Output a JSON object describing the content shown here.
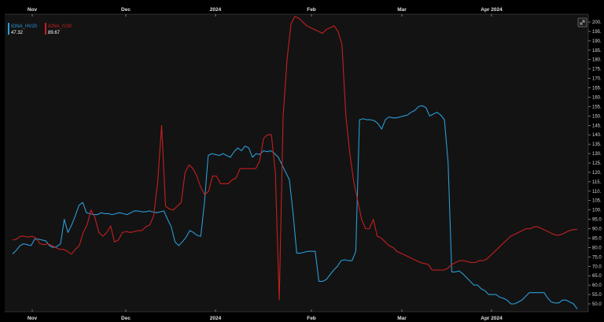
{
  "chart_data": {
    "type": "line",
    "x_tick_labels": [
      "Nov",
      "Dec",
      "2024",
      "Feb",
      "Mar",
      "Apr 2024"
    ],
    "y_tick_labels": [
      "50.0",
      "55.0",
      "60.0",
      "65.0",
      "70.0",
      "75.0",
      "80.0",
      "85.0",
      "90.0",
      "95.0",
      "100.",
      "105.",
      "110.",
      "115.",
      "120.",
      "125.",
      "130.",
      "135.",
      "140.",
      "145.",
      "150.",
      "155.",
      "160.",
      "165.",
      "170.",
      "175.",
      "180.",
      "185.",
      "190.",
      "195.",
      "200."
    ],
    "ylim": [
      47,
      202
    ],
    "grid": false,
    "legend_position": "top-left",
    "series": [
      {
        "name": "IONA_HV20",
        "current_value": "47.32",
        "color": "#2a9bd6",
        "values": [
          76.5,
          78.5,
          81,
          82,
          81.5,
          81,
          84.5,
          84.5,
          84,
          83.5,
          81,
          80,
          80.5,
          82,
          95,
          88,
          92,
          97,
          102.5,
          104,
          98.5,
          98,
          97.5,
          97.5,
          98.5,
          98,
          98,
          97.5,
          98,
          98.5,
          98,
          97.5,
          98.5,
          99.5,
          99.5,
          99,
          99,
          99.5,
          99,
          98.5,
          99,
          99.5,
          95,
          91,
          83,
          81,
          83,
          85.5,
          89,
          88,
          86.5,
          86,
          104,
          129,
          130,
          129.5,
          129,
          130,
          129,
          128,
          131,
          133,
          131.5,
          134,
          133,
          128,
          130,
          129.5,
          131.5,
          131,
          131.5,
          130,
          128,
          124,
          120,
          116,
          98,
          77,
          77,
          77.5,
          78,
          78,
          78,
          62,
          62,
          63,
          65.5,
          68,
          70,
          73,
          73.5,
          73,
          73,
          78,
          148,
          148.5,
          148,
          148,
          147.5,
          146,
          143,
          148,
          149.5,
          149,
          149,
          149.5,
          150,
          150.5,
          152,
          153,
          155,
          155.5,
          154.5,
          150,
          151,
          152,
          150.5,
          148,
          125,
          67,
          67,
          67.5,
          66,
          64,
          62,
          60,
          60,
          58,
          57,
          55,
          55,
          55,
          53.5,
          53,
          52,
          50,
          50,
          51,
          52,
          54,
          56,
          56,
          56,
          56,
          56,
          53,
          51,
          50.5,
          50.5,
          52,
          52,
          51,
          50,
          47.3
        ]
      },
      {
        "name": "IONA_IV30",
        "current_value": "89.67",
        "color": "#c42020",
        "values": [
          84,
          84.5,
          86,
          86,
          85.5,
          86,
          85,
          82,
          81.5,
          82,
          81,
          80,
          79,
          79,
          78,
          76.5,
          79,
          81,
          88,
          92,
          100,
          96,
          88,
          86,
          88,
          91.5,
          83,
          84,
          88,
          88.5,
          88,
          88.5,
          89,
          89,
          91,
          92,
          97,
          115,
          145,
          102,
          100.5,
          100,
          102,
          104,
          120,
          124,
          122,
          118,
          112,
          108,
          110,
          118,
          118,
          114,
          114,
          114,
          116,
          117,
          122,
          122,
          122,
          122,
          122,
          126,
          138,
          140,
          140,
          120,
          52,
          150,
          180,
          199,
          203,
          202,
          200,
          198,
          197,
          196,
          195,
          194,
          196,
          197,
          198,
          195,
          188,
          150,
          130,
          115,
          105,
          95,
          90,
          90,
          95,
          86,
          85,
          83,
          81,
          80,
          78,
          77,
          76,
          75,
          74,
          73,
          72,
          71.5,
          71,
          68,
          68,
          68,
          68,
          69,
          71,
          72,
          73,
          73,
          72.5,
          72,
          72,
          73,
          73,
          74,
          76,
          78,
          80,
          82,
          84,
          86,
          87,
          88,
          89,
          90,
          90,
          91,
          91,
          90,
          89,
          88,
          87,
          86.5,
          87,
          88,
          89,
          89.5,
          89.67
        ]
      }
    ]
  }
}
